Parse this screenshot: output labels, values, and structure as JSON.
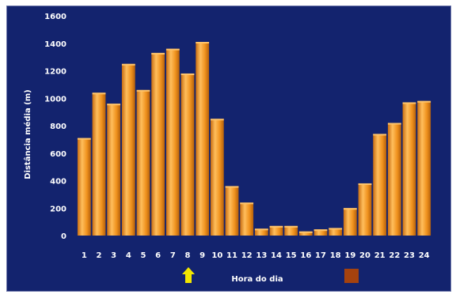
{
  "chart_data": {
    "type": "bar",
    "categories": [
      "1",
      "2",
      "3",
      "4",
      "5",
      "6",
      "7",
      "8",
      "9",
      "10",
      "11",
      "12",
      "13",
      "14",
      "15",
      "16",
      "17",
      "18",
      "19",
      "20",
      "21",
      "22",
      "23",
      "24"
    ],
    "values": [
      710,
      1040,
      960,
      1250,
      1060,
      1330,
      1360,
      1180,
      1410,
      850,
      360,
      240,
      50,
      70,
      70,
      30,
      45,
      55,
      200,
      380,
      740,
      820,
      970,
      980
    ],
    "title": "",
    "xlabel": "Hora do dia",
    "ylabel": "Distância média (m)",
    "ylim": [
      0,
      1600
    ],
    "yticks": [
      "0",
      "200",
      "400",
      "600",
      "800",
      "1000",
      "1200",
      "1400",
      "1600"
    ],
    "grid": false,
    "colors": {
      "background": "#13236e",
      "bar": "#f0921e",
      "bar_highlight": "#ffc46a",
      "bar_shadow": "#b4600c"
    },
    "legend": [
      {
        "marker": "yellow-up-arrow",
        "color": "#f2e600"
      },
      {
        "marker": "brown-square",
        "color": "#a5420e"
      }
    ]
  }
}
